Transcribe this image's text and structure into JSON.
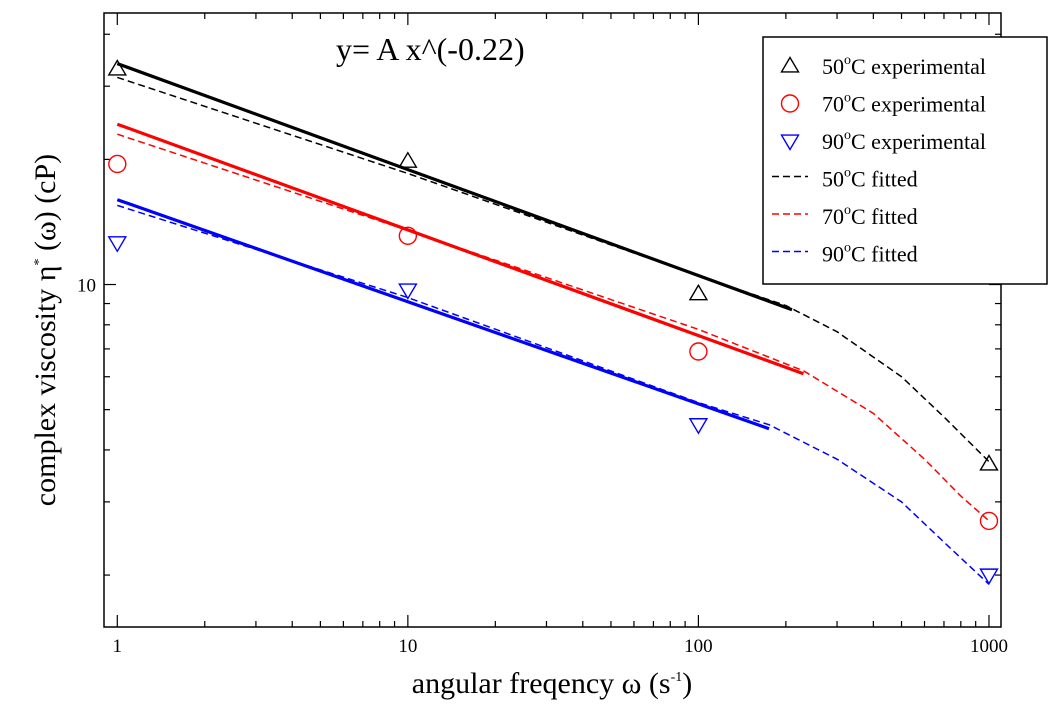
{
  "chart_data": {
    "type": "scatter",
    "annotation": "y= A x^(-0.22)",
    "xlabel": {
      "text": "angular freqency ω (s",
      "sup": "-1",
      "suffix": ")"
    },
    "ylabel": {
      "pre": "complex viscosity η",
      "sup": "*",
      "post": " (ω) (cP)"
    },
    "x_scale": "log",
    "y_scale": "log",
    "xlim": [
      0.9,
      1100
    ],
    "ylim": [
      1.5,
      45
    ],
    "x_ticks": [
      {
        "value": 1,
        "label": "1"
      },
      {
        "value": 10,
        "label": "10"
      },
      {
        "value": 100,
        "label": "100"
      },
      {
        "value": 1000,
        "label": "1000"
      }
    ],
    "y_ticks": [
      {
        "value": 10,
        "label": "10"
      }
    ],
    "grid": false,
    "legend_position": "top-right",
    "series": [
      {
        "name": "50°C experimental",
        "legend_sup": "o",
        "legend_pre": "50",
        "legend_post": "C experimental",
        "kind": "marker",
        "marker": "triangle-up",
        "color": "#000000",
        "points": [
          [
            1,
            33.0
          ],
          [
            10,
            19.8
          ],
          [
            100,
            9.5
          ],
          [
            1000,
            3.7
          ]
        ]
      },
      {
        "name": "70°C experimental",
        "legend_pre": "70",
        "legend_sup": "o",
        "legend_post": "C experimental",
        "kind": "marker",
        "marker": "circle",
        "color": "#ff0000",
        "points": [
          [
            1,
            19.5
          ],
          [
            10,
            13.1
          ],
          [
            100,
            6.9
          ],
          [
            1000,
            2.7
          ]
        ]
      },
      {
        "name": "90°C experimental",
        "legend_pre": "90",
        "legend_sup": "o",
        "legend_post": "C experimental",
        "kind": "marker",
        "marker": "triangle-down",
        "color": "#0000ff",
        "points": [
          [
            1,
            12.6
          ],
          [
            10,
            9.7
          ],
          [
            100,
            4.6
          ],
          [
            1000,
            2.0
          ]
        ]
      },
      {
        "name": "50°C fitted",
        "legend_pre": "50",
        "legend_sup": "o",
        "legend_post": "C fitted",
        "kind": "dashed",
        "color": "#000000",
        "points": [
          [
            1,
            31.5
          ],
          [
            10,
            18.5
          ],
          [
            100,
            10.5
          ],
          [
            200,
            8.9
          ],
          [
            300,
            7.7
          ],
          [
            500,
            6.0
          ],
          [
            700,
            4.8
          ],
          [
            1000,
            3.75
          ]
        ]
      },
      {
        "name": "70°C fitted",
        "legend_pre": "70",
        "legend_sup": "o",
        "legend_post": "C fitted",
        "kind": "dashed",
        "color": "#ff0000",
        "points": [
          [
            1,
            23.0
          ],
          [
            10,
            13.5
          ],
          [
            100,
            7.8
          ],
          [
            230,
            6.2
          ],
          [
            400,
            4.9
          ],
          [
            600,
            3.8
          ],
          [
            800,
            3.1
          ],
          [
            1000,
            2.7
          ]
        ]
      },
      {
        "name": "90°C fitted",
        "legend_pre": "90",
        "legend_sup": "o",
        "legend_post": "C fitted",
        "kind": "dashed",
        "color": "#0000ff",
        "points": [
          [
            1,
            15.5
          ],
          [
            10,
            9.3
          ],
          [
            100,
            5.2
          ],
          [
            175,
            4.6
          ],
          [
            300,
            3.8
          ],
          [
            500,
            3.0
          ],
          [
            700,
            2.4
          ],
          [
            1000,
            1.9
          ]
        ]
      },
      {
        "kind": "solid",
        "color": "#000000",
        "points": [
          [
            1,
            34.0
          ],
          [
            210,
            8.7
          ]
        ]
      },
      {
        "kind": "solid",
        "color": "#ff0000",
        "points": [
          [
            1,
            24.3
          ],
          [
            230,
            6.1
          ]
        ]
      },
      {
        "kind": "solid",
        "color": "#0000ff",
        "points": [
          [
            1,
            16.0
          ],
          [
            175,
            4.5
          ]
        ]
      }
    ]
  }
}
